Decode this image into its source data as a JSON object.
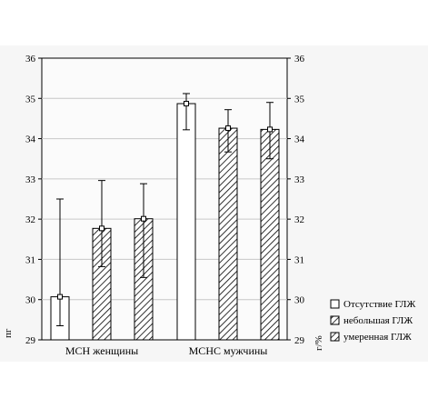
{
  "chart_data": {
    "type": "bar",
    "categories": [
      "МСН женщины",
      "МСНС мужчины"
    ],
    "series": [
      {
        "name": "Отсутствие ГЛЖ",
        "values": [
          30.07,
          34.87
        ],
        "error_low": [
          29.35,
          34.22
        ],
        "error_high": [
          32.5,
          35.12
        ],
        "pattern": "none"
      },
      {
        "name": "небольшая ГЛЖ",
        "values": [
          31.77,
          34.26
        ],
        "error_low": [
          30.82,
          33.67
        ],
        "error_high": [
          32.96,
          34.72
        ],
        "pattern": "hatch"
      },
      {
        "name": "умеренная ГЛЖ",
        "values": [
          32.01,
          34.23
        ],
        "error_low": [
          30.55,
          33.5
        ],
        "error_high": [
          32.88,
          34.9
        ],
        "pattern": "hatch"
      }
    ],
    "ylabel_left": "пг",
    "ylabel_right": "г/%",
    "ylim": [
      29,
      36
    ],
    "yticks": [
      "29",
      "30",
      "31",
      "32",
      "33",
      "34",
      "35",
      "36"
    ],
    "grid": true,
    "legend_position": "bottom-right",
    "colors": {
      "bar_fill": "#ffffff",
      "hatch": "#000000",
      "grid": "#c8c8c8",
      "plot_bg": "#fbfbfb"
    }
  }
}
